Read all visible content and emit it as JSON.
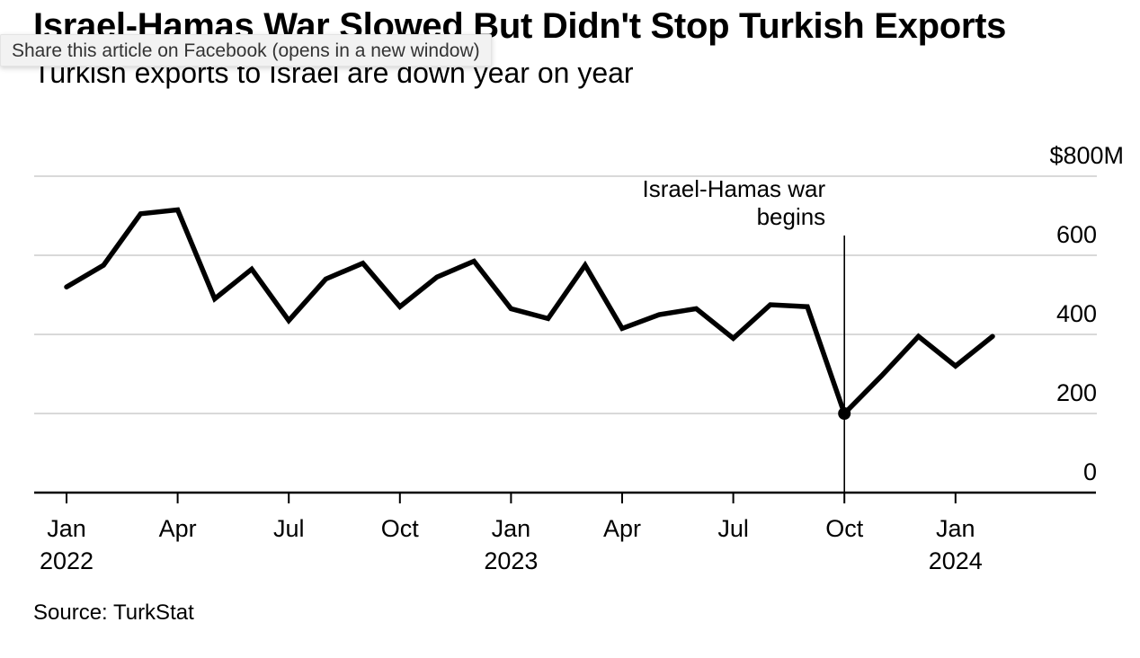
{
  "chart_data": {
    "type": "line",
    "title": "Israel-Hamas War Slowed But Didn't Stop Turkish Exports",
    "subtitle": "Turkish exports to Israel are down year on year",
    "source": "Source: TurkStat",
    "x": [
      "2022-01",
      "2022-02",
      "2022-03",
      "2022-04",
      "2022-05",
      "2022-06",
      "2022-07",
      "2022-08",
      "2022-09",
      "2022-10",
      "2022-11",
      "2022-12",
      "2023-01",
      "2023-02",
      "2023-03",
      "2023-04",
      "2023-05",
      "2023-06",
      "2023-07",
      "2023-08",
      "2023-09",
      "2023-10",
      "2023-11",
      "2023-12",
      "2024-01",
      "2024-02"
    ],
    "series": [
      {
        "values": [
          520,
          575,
          705,
          715,
          490,
          565,
          435,
          540,
          580,
          470,
          545,
          585,
          465,
          440,
          575,
          415,
          450,
          465,
          390,
          475,
          470,
          200,
          295,
          395,
          320,
          395
        ],
        "color": "#000000"
      }
    ],
    "ylim": [
      0,
      800
    ],
    "y_ticks": [
      {
        "value": 0,
        "label": "0"
      },
      {
        "value": 200,
        "label": "200"
      },
      {
        "value": 400,
        "label": "400"
      },
      {
        "value": 600,
        "label": "600"
      },
      {
        "value": 800,
        "label": "$800M"
      }
    ],
    "x_ticks": [
      {
        "x": "2022-01",
        "label": "Jan",
        "year": "2022"
      },
      {
        "x": "2022-04",
        "label": "Apr",
        "year": ""
      },
      {
        "x": "2022-07",
        "label": "Jul",
        "year": ""
      },
      {
        "x": "2022-10",
        "label": "Oct",
        "year": ""
      },
      {
        "x": "2023-01",
        "label": "Jan",
        "year": "2023"
      },
      {
        "x": "2023-04",
        "label": "Apr",
        "year": ""
      },
      {
        "x": "2023-07",
        "label": "Jul",
        "year": ""
      },
      {
        "x": "2023-10",
        "label": "Oct",
        "year": ""
      },
      {
        "x": "2024-01",
        "label": "Jan",
        "year": "2024"
      }
    ],
    "annotation": {
      "x": "2023-10",
      "lines": [
        "Israel-Hamas war",
        "begins"
      ]
    },
    "grid": true,
    "y_axis_side": "right",
    "gridline_color": "#d9d9d9",
    "axis_color": "#000000"
  },
  "ui": {
    "tooltip": "Share this article on Facebook (opens in a new window)"
  }
}
